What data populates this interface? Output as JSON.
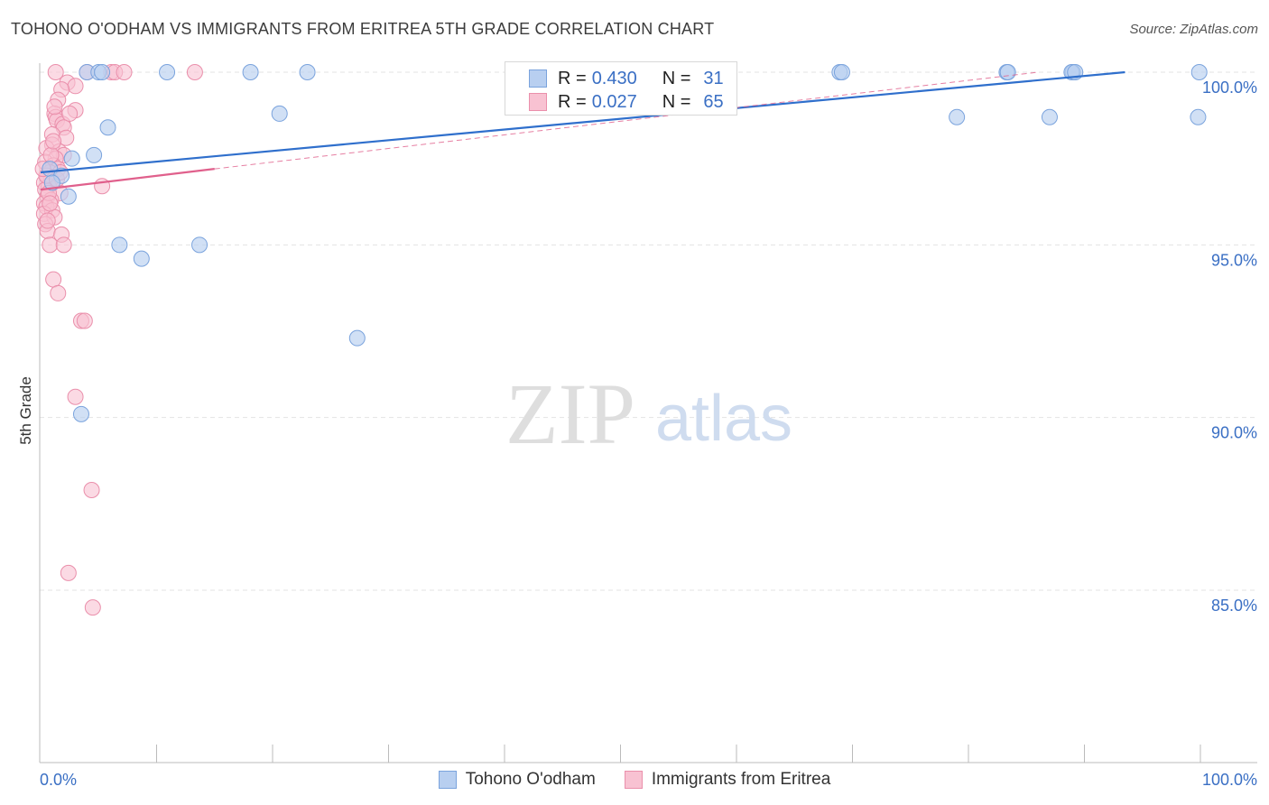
{
  "header": {
    "title": "TOHONO O'ODHAM VS IMMIGRANTS FROM ERITREA 5TH GRADE CORRELATION CHART",
    "source": "Source: ZipAtlas.com"
  },
  "watermark": {
    "zip": "ZIP",
    "atlas": "atlas"
  },
  "legend": {
    "r_label": "R =",
    "n_label": "N =",
    "rows": [
      {
        "r": "0.430",
        "n": "31"
      },
      {
        "r": "0.027",
        "n": "65"
      }
    ]
  },
  "colors": {
    "blue_fill": "#b8cff0",
    "blue_stroke": "#7aa3dd",
    "blue_line": "#2f6fcc",
    "pink_fill": "#f8c2d2",
    "pink_stroke": "#ea8fab",
    "pink_line": "#e0608c",
    "axis_label": "#3a6fc4",
    "grid": "#e3e3e3"
  },
  "chart_data": {
    "type": "scatter",
    "title": "TOHONO O'ODHAM VS IMMIGRANTS FROM ERITREA 5TH GRADE CORRELATION CHART",
    "ylabel": "5th Grade",
    "xlabel": "",
    "xlim": [
      0,
      100
    ],
    "ylim": [
      80.5,
      100.8
    ],
    "x_tick_labels": [
      "0.0%",
      "100.0%"
    ],
    "y_ticks": [
      100,
      95,
      90,
      85
    ],
    "y_tick_labels": [
      "100.0%",
      "95.0%",
      "90.0%",
      "85.0%"
    ],
    "grid": true,
    "legend_position": "bottom",
    "series": [
      {
        "name": "Tohono O'odham",
        "r": 0.43,
        "n": 31,
        "trend": {
          "x0": 0,
          "y0": 97.1,
          "x1": 93.5,
          "y1": 100.0
        },
        "points": [
          [
            4.0,
            100
          ],
          [
            5.0,
            100
          ],
          [
            5.3,
            100
          ],
          [
            10.9,
            100
          ],
          [
            18.1,
            100
          ],
          [
            23.0,
            100
          ],
          [
            47.6,
            100
          ],
          [
            68.9,
            100
          ],
          [
            69.1,
            100
          ],
          [
            83.3,
            100
          ],
          [
            83.4,
            100
          ],
          [
            99.9,
            100
          ],
          [
            89.0,
            100
          ],
          [
            88.9,
            100
          ],
          [
            89.2,
            100
          ],
          [
            5.8,
            98.4
          ],
          [
            20.6,
            98.8
          ],
          [
            79.0,
            98.7
          ],
          [
            87.0,
            98.7
          ],
          [
            99.8,
            98.7
          ],
          [
            4.6,
            97.6
          ],
          [
            2.7,
            97.5
          ],
          [
            0.8,
            97.2
          ],
          [
            1.8,
            97.0
          ],
          [
            1.0,
            96.8
          ],
          [
            2.4,
            96.4
          ],
          [
            6.8,
            95.0
          ],
          [
            13.7,
            95.0
          ],
          [
            8.7,
            94.6
          ],
          [
            27.3,
            92.3
          ],
          [
            3.5,
            90.1
          ]
        ]
      },
      {
        "name": "Immigrants from Eritrea",
        "r": 0.027,
        "n": 65,
        "trend": {
          "x0": 0,
          "y0": 96.6,
          "x1": 15.0,
          "y1": 97.2
        },
        "trend_ext": {
          "x0": 15.0,
          "y0": 97.2,
          "x1": 86.0,
          "y1": 100.0
        },
        "points": [
          [
            1.3,
            100
          ],
          [
            4.0,
            100
          ],
          [
            6.1,
            100
          ],
          [
            6.4,
            100
          ],
          [
            7.2,
            100
          ],
          [
            13.3,
            100
          ],
          [
            2.3,
            99.7
          ],
          [
            3.0,
            99.6
          ],
          [
            1.8,
            99.5
          ],
          [
            1.5,
            99.2
          ],
          [
            3.0,
            98.9
          ],
          [
            1.2,
            98.8
          ],
          [
            1.3,
            98.7
          ],
          [
            1.4,
            98.6
          ],
          [
            1.9,
            98.5
          ],
          [
            2.0,
            98.4
          ],
          [
            1.0,
            98.2
          ],
          [
            2.2,
            98.1
          ],
          [
            1.0,
            97.9
          ],
          [
            0.5,
            97.8
          ],
          [
            1.6,
            97.7
          ],
          [
            2.0,
            97.6
          ],
          [
            1.3,
            97.5
          ],
          [
            0.4,
            97.4
          ],
          [
            1.1,
            97.3
          ],
          [
            1.5,
            97.2
          ],
          [
            0.8,
            97.1
          ],
          [
            0.6,
            97.0
          ],
          [
            0.9,
            96.9
          ],
          [
            0.3,
            96.8
          ],
          [
            0.7,
            96.7
          ],
          [
            5.3,
            96.7
          ],
          [
            0.4,
            96.6
          ],
          [
            1.7,
            96.5
          ],
          [
            0.6,
            96.4
          ],
          [
            0.9,
            96.3
          ],
          [
            0.3,
            96.2
          ],
          [
            0.5,
            96.1
          ],
          [
            1.0,
            96.0
          ],
          [
            0.3,
            95.9
          ],
          [
            1.2,
            95.8
          ],
          [
            0.4,
            95.6
          ],
          [
            0.6,
            95.4
          ],
          [
            1.8,
            95.3
          ],
          [
            0.8,
            95.0
          ],
          [
            2.0,
            95.0
          ],
          [
            1.1,
            94.0
          ],
          [
            1.5,
            93.6
          ],
          [
            3.5,
            92.8
          ],
          [
            3.8,
            92.8
          ],
          [
            3.0,
            90.6
          ],
          [
            4.4,
            87.9
          ],
          [
            2.4,
            85.5
          ],
          [
            4.5,
            84.5
          ],
          [
            0.5,
            97.0
          ],
          [
            0.7,
            96.5
          ],
          [
            1.4,
            96.9
          ],
          [
            0.2,
            97.2
          ],
          [
            0.9,
            97.6
          ],
          [
            1.1,
            98.0
          ],
          [
            0.6,
            95.7
          ],
          [
            1.7,
            97.1
          ],
          [
            0.8,
            96.2
          ],
          [
            2.5,
            98.8
          ],
          [
            1.2,
            99.0
          ]
        ]
      }
    ]
  },
  "bottom_legend": [
    {
      "name": "Tohono O'odham"
    },
    {
      "name": "Immigrants from Eritrea"
    }
  ]
}
